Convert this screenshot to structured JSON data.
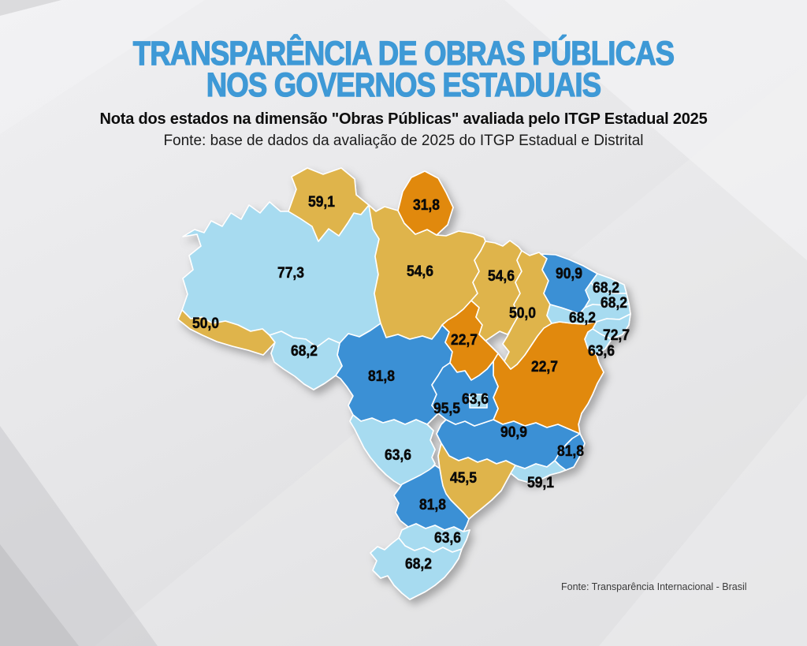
{
  "header": {
    "title_line1": "TRANSPARÊNCIA DE OBRAS PÚBLICAS",
    "title_line2": "NOS GOVERNOS ESTADUAIS",
    "subtitle": "Nota dos estados na dimensão \"Obras Públicas\" avaliada pelo ITGP Estadual 2025",
    "source": "Fonte: base de dados da avaliação de 2025 do ITGP Estadual e Distrital"
  },
  "footer": {
    "source": "Fonte: Transparência Internacional - Brasil"
  },
  "colors": {
    "title_blue": "#3E99D6",
    "background_gray": "#E4E4E6",
    "border_white": "#FFFFFF",
    "label_black": "#0A0A0A"
  },
  "chart_data": {
    "type": "heatmap",
    "subtype": "choropleth-map-brazil-states",
    "title": "TRANSPARÊNCIA DE OBRAS PÚBLICAS NOS GOVERNOS ESTADUAIS",
    "subtitle": "Nota dos estados na dimensão \"Obras Públicas\" avaliada pelo ITGP Estadual 2025",
    "source": "Fonte: base de dados da avaliação de 2025 do ITGP Estadual e Distrital",
    "footer_source": "Fonte: Transparência Internacional - Brasil",
    "value_range": [
      0,
      100
    ],
    "value_format": "decimal-comma",
    "color_levels": {
      "orange": "#E1890F",
      "gold": "#DFB44B",
      "light_blue": "#A7DBF0",
      "blue": "#3B90D5"
    },
    "states": [
      {
        "id": "RR",
        "value": "59,1",
        "numeric": 59.1,
        "level": "gold"
      },
      {
        "id": "AP",
        "value": "31,8",
        "numeric": 31.8,
        "level": "orange"
      },
      {
        "id": "AM",
        "value": "77,3",
        "numeric": 77.3,
        "level": "light_blue"
      },
      {
        "id": "PA",
        "value": "54,6",
        "numeric": 54.6,
        "level": "gold"
      },
      {
        "id": "MA",
        "value": "54,6",
        "numeric": 54.6,
        "level": "gold"
      },
      {
        "id": "PI",
        "value": "50,0",
        "numeric": 50.0,
        "level": "gold"
      },
      {
        "id": "CE",
        "value": "90,9",
        "numeric": 90.9,
        "level": "blue"
      },
      {
        "id": "RN",
        "value": "68,2",
        "numeric": 68.2,
        "level": "light_blue"
      },
      {
        "id": "PB",
        "value": "68,2",
        "numeric": 68.2,
        "level": "light_blue"
      },
      {
        "id": "PE",
        "value": "68,2",
        "numeric": 68.2,
        "level": "light_blue"
      },
      {
        "id": "AL",
        "value": "72,7",
        "numeric": 72.7,
        "level": "light_blue"
      },
      {
        "id": "SE",
        "value": "63,6",
        "numeric": 63.6,
        "level": "light_blue"
      },
      {
        "id": "BA",
        "value": "22,7",
        "numeric": 22.7,
        "level": "orange"
      },
      {
        "id": "TO",
        "value": "22,7",
        "numeric": 22.7,
        "level": "orange"
      },
      {
        "id": "AC",
        "value": "50,0",
        "numeric": 50.0,
        "level": "gold"
      },
      {
        "id": "RO",
        "value": "68,2",
        "numeric": 68.2,
        "level": "light_blue"
      },
      {
        "id": "MT",
        "value": "81,8",
        "numeric": 81.8,
        "level": "blue"
      },
      {
        "id": "GO",
        "value": "95,5",
        "numeric": 95.5,
        "level": "blue"
      },
      {
        "id": "DF",
        "value": "63,6",
        "numeric": 63.6,
        "level": "light_blue"
      },
      {
        "id": "MG",
        "value": "90,9",
        "numeric": 90.9,
        "level": "blue"
      },
      {
        "id": "ES",
        "value": "81,8",
        "numeric": 81.8,
        "level": "blue"
      },
      {
        "id": "RJ",
        "value": "59,1",
        "numeric": 59.1,
        "level": "light_blue"
      },
      {
        "id": "SP",
        "value": "45,5",
        "numeric": 45.5,
        "level": "gold"
      },
      {
        "id": "MS",
        "value": "63,6",
        "numeric": 63.6,
        "level": "light_blue"
      },
      {
        "id": "PR",
        "value": "81,8",
        "numeric": 81.8,
        "level": "blue"
      },
      {
        "id": "SC",
        "value": "63,6",
        "numeric": 63.6,
        "level": "light_blue"
      },
      {
        "id": "RS",
        "value": "68,2",
        "numeric": 68.2,
        "level": "light_blue"
      }
    ]
  }
}
